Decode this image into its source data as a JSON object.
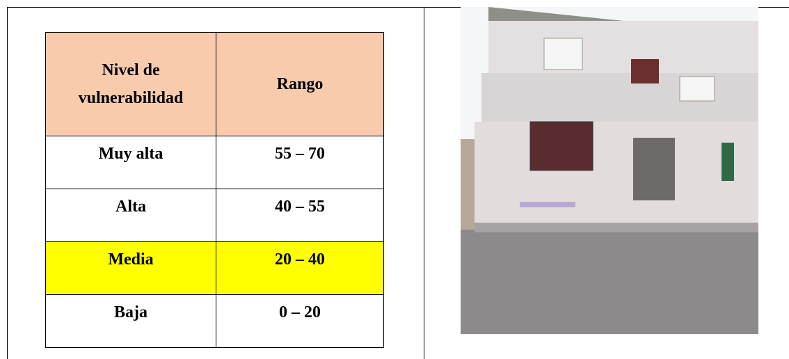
{
  "table": {
    "header": [
      "Nivel de vulnerabilidad",
      "Rango"
    ],
    "rows": [
      [
        "Muy alta",
        "55 – 70"
      ],
      [
        "Alta",
        "40 – 55"
      ],
      [
        "Media",
        "20 – 40"
      ],
      [
        "Baja",
        "0 – 20"
      ]
    ]
  }
}
